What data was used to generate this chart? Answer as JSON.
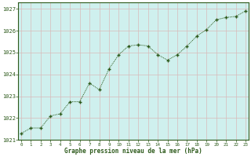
{
  "x": [
    0,
    1,
    2,
    3,
    4,
    5,
    6,
    7,
    8,
    9,
    10,
    11,
    12,
    13,
    14,
    15,
    16,
    17,
    18,
    19,
    20,
    21,
    22,
    23
  ],
  "y": [
    1021.3,
    1021.55,
    1021.55,
    1022.1,
    1022.2,
    1022.75,
    1022.75,
    1023.6,
    1023.3,
    1024.25,
    1024.9,
    1025.3,
    1025.35,
    1025.3,
    1024.9,
    1024.65,
    1024.9,
    1025.3,
    1025.75,
    1026.05,
    1026.5,
    1026.6,
    1026.65,
    1026.9
  ],
  "line_color": "#2d5a1b",
  "marker_color": "#2d5a1b",
  "bg_plot": "#cff0ee",
  "bg_figure": "#ffffff",
  "grid_color": "#cccccc",
  "grid_color2": "#d8baba",
  "xlabel": "Graphe pression niveau de la mer (hPa)",
  "xlabel_color": "#2d5a1b",
  "ytick_labels": [
    "1021",
    "1022",
    "1023",
    "1024",
    "1025",
    "1026",
    "1027"
  ],
  "ytick_vals": [
    1021,
    1022,
    1023,
    1024,
    1025,
    1026,
    1027
  ],
  "xtick_vals": [
    0,
    1,
    2,
    3,
    4,
    5,
    6,
    7,
    8,
    9,
    10,
    11,
    12,
    13,
    14,
    15,
    16,
    17,
    18,
    19,
    20,
    21,
    22,
    23
  ],
  "ylim": [
    1021.0,
    1027.3
  ],
  "xlim": [
    -0.3,
    23.3
  ]
}
